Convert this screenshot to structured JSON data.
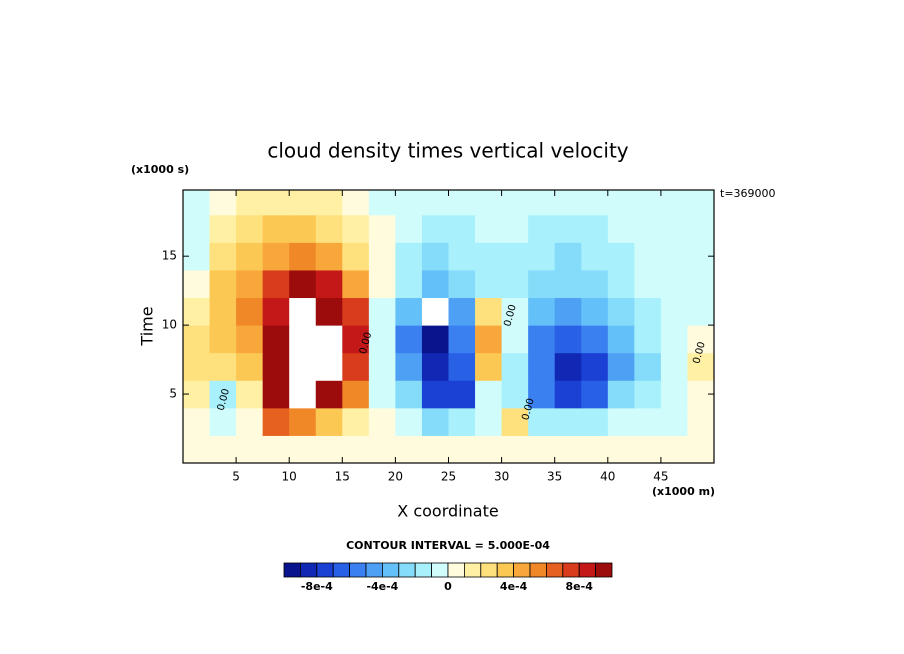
{
  "chart_data": {
    "type": "contour",
    "title": "cloud density times vertical velocity",
    "y_unit_label": "(x1000 s)",
    "x_unit_label": "(x1000 m)",
    "time_label": "t=369000",
    "ylabel": "Time",
    "xlabel": "X coordinate",
    "contour_interval_label": "CONTOUR INTERVAL = 5.000E-04",
    "xlim": [
      0,
      50
    ],
    "ylim": [
      0,
      19.8
    ],
    "xticks": [
      5,
      10,
      15,
      20,
      25,
      30,
      35,
      40,
      45
    ],
    "yticks": [
      5,
      10,
      15
    ],
    "x": [
      1.25,
      3.75,
      6.25,
      8.75,
      11.25,
      13.75,
      16.25,
      18.75,
      21.25,
      23.75,
      26.25,
      28.75,
      31.25,
      33.75,
      36.25,
      38.75,
      41.25,
      43.75,
      46.25,
      48.75
    ],
    "y": [
      1,
      3,
      5,
      7,
      9,
      11,
      13,
      15,
      17,
      19
    ],
    "z": [
      [
        5e-05,
        5e-05,
        5e-05,
        5e-05,
        5e-05,
        5e-05,
        5e-05,
        5e-05,
        5e-05,
        5e-05,
        5e-05,
        5e-05,
        5e-05,
        5e-05,
        5e-05,
        5e-05,
        5e-05,
        5e-05,
        5e-05,
        5e-05
      ],
      [
        5e-05,
        -5e-05,
        5e-05,
        0.0006,
        0.0005,
        0.0003,
        0.0001,
        5e-05,
        -5e-05,
        -0.0003,
        -0.0002,
        -0.0001,
        0.0002,
        -0.0002,
        -0.0002,
        -0.0002,
        -0.0001,
        -0.0001,
        -5e-05,
        5e-05
      ],
      [
        0.0001,
        -0.00015,
        0.0001,
        0.00095,
        0.0012,
        0.00095,
        0.0005,
        -5e-05,
        -0.0003,
        -0.0008,
        -0.0008,
        -0.0001,
        -0.0002,
        -0.0006,
        -0.0008,
        -0.0007,
        -0.0003,
        -0.0002,
        -0.0001,
        5e-05
      ],
      [
        0.00025,
        0.00025,
        0.00035,
        0.0009,
        0.0012,
        0.0012,
        0.0007,
        -5e-05,
        -0.0005,
        -0.0009,
        -0.0007,
        0.0003,
        -0.0002,
        -0.0006,
        -0.00085,
        -0.0008,
        -0.0005,
        -0.00025,
        -0.0001,
        0.0001
      ],
      [
        0.0002,
        0.0003,
        0.00045,
        0.0009,
        0.0012,
        0.0012,
        0.0008,
        -5e-05,
        -0.0006,
        -0.00095,
        -0.0006,
        0.0004,
        -0.0001,
        -0.0006,
        -0.0007,
        -0.0006,
        -0.0004,
        -0.0002,
        -0.0001,
        5e-05
      ],
      [
        0.00015,
        0.0003,
        0.0005,
        0.0008,
        0.0012,
        0.00095,
        0.0007,
        -5e-05,
        -0.0004,
        -0.0012,
        -0.0005,
        0.0002,
        -0.0001,
        -0.0004,
        -0.0005,
        -0.0004,
        -0.0003,
        -0.00015,
        -5e-05,
        -5e-05
      ],
      [
        5e-05,
        0.0003,
        0.00045,
        0.0007,
        0.0009,
        0.0008,
        0.0004,
        5e-05,
        -0.0002,
        -0.00035,
        -0.00025,
        -0.00015,
        -0.00015,
        -0.00025,
        -0.0003,
        -0.0003,
        -0.0002,
        -0.0001,
        -5e-05,
        -5e-05
      ],
      [
        -5e-05,
        0.00025,
        0.00035,
        0.00045,
        0.0005,
        0.00045,
        0.00025,
        5e-05,
        -0.00015,
        -0.00025,
        -0.0002,
        -0.00015,
        -0.00015,
        -0.0002,
        -0.00025,
        -0.0002,
        -0.00015,
        -0.0001,
        -5e-05,
        -5e-05
      ],
      [
        -5e-05,
        0.00015,
        0.00025,
        0.0003,
        0.0003,
        0.00025,
        0.00015,
        5e-05,
        -5e-05,
        -0.00015,
        -0.00015,
        -0.0001,
        -0.0001,
        -0.00015,
        -0.00015,
        -0.00015,
        -0.0001,
        -0.0001,
        -5e-05,
        -5e-05
      ],
      [
        -5e-05,
        5e-05,
        0.0001,
        0.0001,
        0.0001,
        0.0001,
        5e-05,
        -5e-05,
        -5e-05,
        -5e-05,
        -5e-05,
        -5e-05,
        -5e-05,
        -5e-05,
        -5e-05,
        -5e-05,
        -5e-05,
        -5e-05,
        -5e-05,
        -5e-05
      ]
    ],
    "contour_labels": [
      {
        "text": "0.00",
        "x": 3.8,
        "y": 4.6
      },
      {
        "text": "0.00",
        "x": 17.2,
        "y": 8.7
      },
      {
        "text": "0.00",
        "x": 30.8,
        "y": 10.7
      },
      {
        "text": "0.00",
        "x": 32.5,
        "y": 3.9
      },
      {
        "text": "0.00",
        "x": 48.6,
        "y": 8.0
      }
    ],
    "colorbar": {
      "levels": [
        -0.001,
        -0.0009,
        -0.0008,
        -0.0007,
        -0.0006,
        -0.0005,
        -0.0004,
        -0.0003,
        -0.0002,
        -0.0001,
        0,
        0.0001,
        0.0002,
        0.0003,
        0.0004,
        0.0005,
        0.0006,
        0.0007,
        0.0008,
        0.0009,
        0.001
      ],
      "colors": [
        "#0a148c",
        "#1028b4",
        "#1a40d4",
        "#2860e6",
        "#3a80f0",
        "#4ea0f4",
        "#64c0f8",
        "#84dcfa",
        "#a8f0fc",
        "#d0fcfc",
        "#fffbdc",
        "#fff0a4",
        "#fee07c",
        "#fcc854",
        "#f8a83a",
        "#f08828",
        "#e66020",
        "#d83c1c",
        "#c41818",
        "#9c0c0c"
      ],
      "ticks": [
        {
          "value": -0.0008,
          "label": "-8e-4"
        },
        {
          "value": -0.0004,
          "label": "-4e-4"
        },
        0,
        {
          "value": 0.0004,
          "label": "4e-4"
        },
        {
          "value": 0.0008,
          "label": "8e-4"
        }
      ]
    }
  }
}
